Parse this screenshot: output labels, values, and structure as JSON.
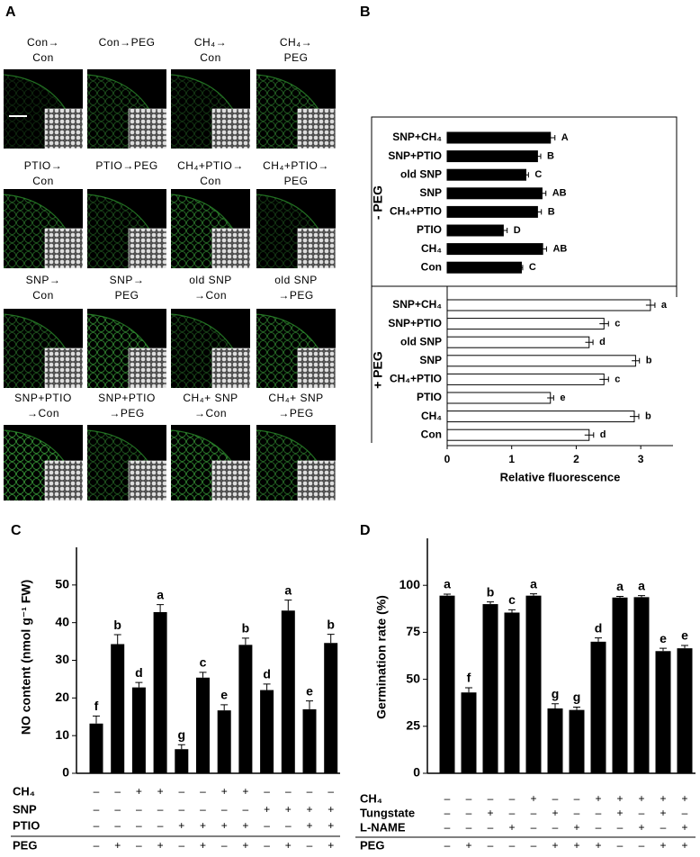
{
  "image_panel": {
    "panel_label": "A",
    "captions": [
      [
        "Con→",
        "Con"
      ],
      [
        "Con→PEG"
      ],
      [
        "CH₄→",
        "Con"
      ],
      [
        "CH₄→",
        "PEG"
      ],
      [
        "PTIO→",
        "Con"
      ],
      [
        "PTIO→PEG"
      ],
      [
        "CH₄+PTIO→",
        "Con"
      ],
      [
        "CH₄+PTIO→",
        "PEG"
      ],
      [
        "SNP→",
        "Con"
      ],
      [
        "SNP→",
        "PEG"
      ],
      [
        "old SNP",
        "→Con"
      ],
      [
        "old SNP",
        "→PEG"
      ],
      [
        "SNP+PTIO",
        "→Con"
      ],
      [
        "SNP+PTIO",
        "→PEG"
      ],
      [
        "CH₄+ SNP",
        "→Con"
      ],
      [
        "CH₄+ SNP",
        "→PEG"
      ]
    ]
  },
  "chart_data": [
    {
      "type": "bar",
      "orientation": "horizontal",
      "panel_label": "B",
      "x_label": "Relative fluorescence",
      "categories": [
        "SNP+CH₄",
        "SNP+PTIO",
        "old SNP",
        "SNP",
        "CH₄+PTIO",
        "PTIO",
        "CH₄",
        "Con"
      ],
      "series": [
        {
          "name": "- PEG",
          "color": "#000000",
          "values": [
            1.6,
            1.4,
            1.22,
            1.47,
            1.4,
            0.87,
            1.48,
            1.15
          ],
          "errors": [
            0.07,
            0.05,
            0.04,
            0.06,
            0.06,
            0.06,
            0.06,
            0.02
          ],
          "letters": [
            "A",
            "B",
            "C",
            "AB",
            "B",
            "D",
            "AB",
            "C"
          ]
        },
        {
          "name": "+ PEG",
          "color": "#ffffff",
          "values": [
            3.15,
            2.43,
            2.2,
            2.92,
            2.43,
            1.6,
            2.9,
            2.2
          ],
          "errors": [
            0.07,
            0.07,
            0.06,
            0.06,
            0.07,
            0.05,
            0.07,
            0.07
          ],
          "letters": [
            "a",
            "c",
            "d",
            "b",
            "c",
            "e",
            "b",
            "d"
          ]
        }
      ],
      "xlim": [
        0,
        3.5
      ],
      "xticks": [
        0,
        1,
        2,
        3
      ]
    },
    {
      "type": "bar",
      "orientation": "vertical",
      "panel_label": "C",
      "y_label": "NO content (nmol g⁻¹ FW)",
      "series": [
        {
          "color": "#000000",
          "values": [
            13.2,
            34.3,
            22.8,
            42.8,
            6.4,
            25.4,
            16.7,
            34.1,
            22.1,
            43.2,
            17,
            34.6
          ],
          "errors": [
            2,
            2.5,
            1.3,
            2,
            1.2,
            1.4,
            1.5,
            1.8,
            1.6,
            2.8,
            2.2,
            2.3
          ],
          "letters": [
            "f",
            "b",
            "d",
            "a",
            "g",
            "c",
            "e",
            "b",
            "d",
            "a",
            "e",
            "b"
          ]
        }
      ],
      "ylim": [
        0,
        60
      ],
      "yticks": [
        0,
        10,
        20,
        30,
        40,
        50
      ],
      "treatments": [
        {
          "name": "CH₄",
          "signs": [
            "–",
            "–",
            "+",
            "+",
            "–",
            "–",
            "+",
            "+",
            "–",
            "–",
            "–",
            "–"
          ]
        },
        {
          "name": "SNP",
          "signs": [
            "–",
            "–",
            "–",
            "–",
            "–",
            "–",
            "–",
            "–",
            "+",
            "+",
            "+",
            "+"
          ]
        },
        {
          "name": "PTIO",
          "signs": [
            "–",
            "–",
            "–",
            "–",
            "+",
            "+",
            "+",
            "+",
            "–",
            "–",
            "+",
            "+"
          ]
        },
        {
          "name": "PEG",
          "signs": [
            "–",
            "+",
            "–",
            "+",
            "–",
            "+",
            "–",
            "+",
            "–",
            "+",
            "–",
            "+"
          ]
        }
      ]
    },
    {
      "type": "bar",
      "orientation": "vertical",
      "panel_label": "D",
      "y_label": "Germination rate (%)",
      "series": [
        {
          "color": "#000000",
          "values": [
            94.5,
            43,
            90,
            85.5,
            94.5,
            34.5,
            33.7,
            70,
            93.5,
            93.7,
            65,
            66.5
          ],
          "errors": [
            0.8,
            2.5,
            1.2,
            1.5,
            1,
            2.5,
            1.5,
            2,
            0.6,
            0.8,
            1.5,
            1.5
          ],
          "letters": [
            "a",
            "f",
            "b",
            "c",
            "a",
            "g",
            "g",
            "d",
            "a",
            "a",
            "e",
            "e"
          ]
        }
      ],
      "ylim": [
        0,
        125
      ],
      "yticks": [
        0,
        25,
        50,
        75,
        100
      ],
      "treatments": [
        {
          "name": "CH₄",
          "signs": [
            "–",
            "–",
            "–",
            "–",
            "+",
            "–",
            "–",
            "+",
            "+",
            "+",
            "+",
            "+"
          ]
        },
        {
          "name": "Tungstate",
          "signs": [
            "–",
            "–",
            "+",
            "–",
            "–",
            "+",
            "–",
            "–",
            "+",
            "–",
            "+",
            "–"
          ]
        },
        {
          "name": "L-NAME",
          "signs": [
            "–",
            "–",
            "–",
            "+",
            "–",
            "–",
            "+",
            "–",
            "–",
            "+",
            "–",
            "+"
          ]
        },
        {
          "name": "PEG",
          "signs": [
            "–",
            "+",
            "–",
            "–",
            "–",
            "+",
            "+",
            "+",
            "–",
            "–",
            "+",
            "+"
          ]
        }
      ]
    }
  ]
}
